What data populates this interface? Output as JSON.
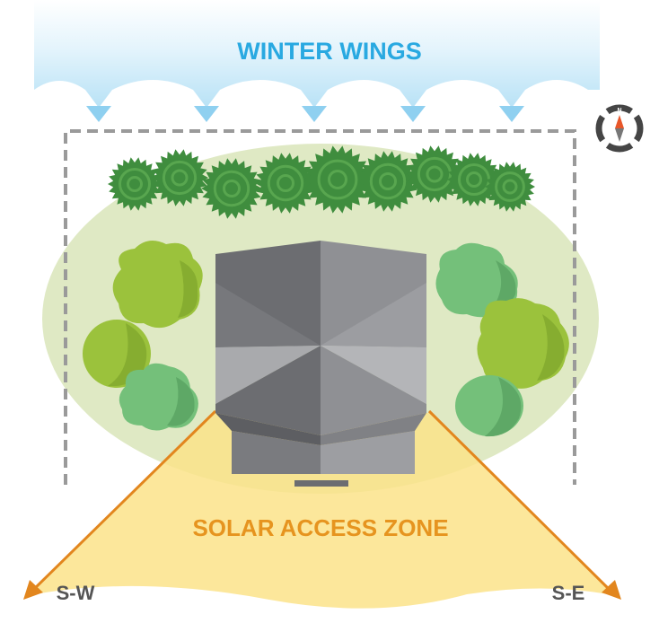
{
  "labels": {
    "winter": "WINTER WINGS",
    "solar": "SOLAR ACCESS ZONE",
    "southwest": "S-W",
    "southeast": "S-E",
    "compass_north": "N"
  },
  "colors": {
    "wind_blue": "#29a9e1",
    "wind_band": "#cdeaf8",
    "solar_label": "#e6941f",
    "solar_zone": "#fbe38a",
    "arrow_orange": "#e2861e",
    "garden": "#dfe9c4",
    "evergreen": "#3f8d3e",
    "shrub_lime": "#9bc23c",
    "shrub_green": "#74c07a",
    "roof_dark": "#6c6d71",
    "roof_mid": "#8f9094",
    "roof_light": "#a9aaad",
    "fence": "#9a9a9a",
    "direction_text": "#555555",
    "compass_ring": "#454545",
    "compass_needle": "#e8572a"
  },
  "icons": [
    "compass-icon",
    "evergreen-tree-icon",
    "shrub-icon",
    "house-roof-icon"
  ]
}
